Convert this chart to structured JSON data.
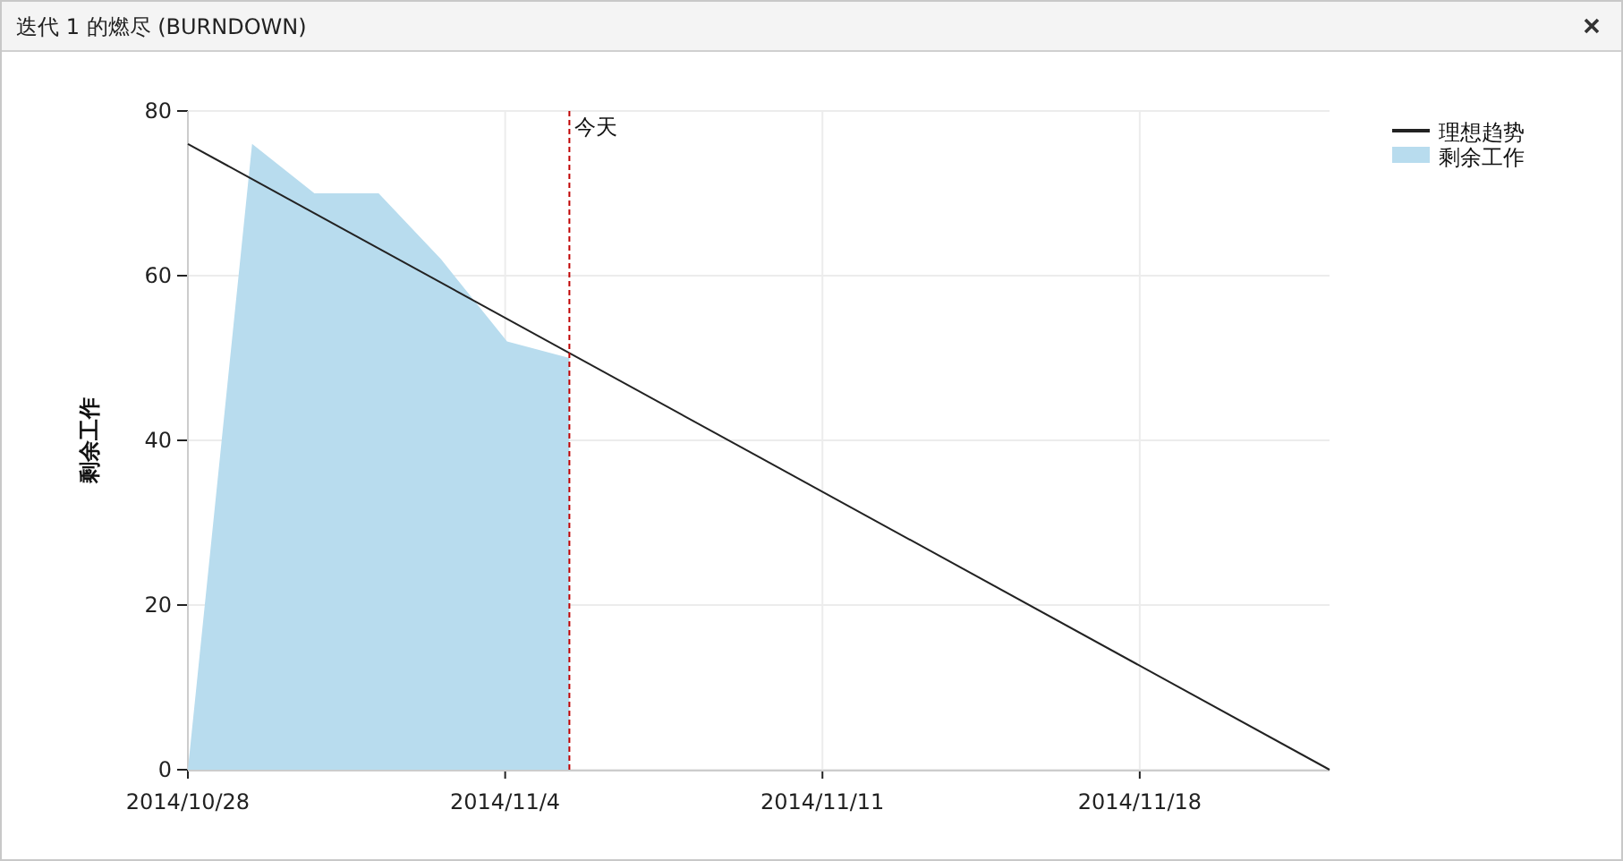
{
  "chart_data": {
    "type": "area",
    "title": "迭代 1 的燃尽 (BURNDOWN)",
    "ylabel": "剩余工作",
    "xlim": [
      "2014-10-28",
      "2014-11-22T04:30"
    ],
    "xticks": [
      {
        "value": "2014-10-28",
        "label": "2014/10/28"
      },
      {
        "value": "2014-11-04",
        "label": "2014/11/4"
      },
      {
        "value": "2014-11-11",
        "label": "2014/11/11"
      },
      {
        "value": "2014-11-18",
        "label": "2014/11/18"
      }
    ],
    "ylim": [
      0,
      80
    ],
    "yticks": [
      0,
      20,
      40,
      60,
      80
    ],
    "grid": true,
    "legend": "top right",
    "ref_lines": [
      {
        "axis": "x",
        "value": "2014-11-05T10:00",
        "label": "今天",
        "color": "#c00000",
        "line_style": "dashed"
      }
    ],
    "series": [
      {
        "name": "理想趋势",
        "type": "line",
        "color": "#222222",
        "x": [
          "2014-10-28",
          "2014-11-22T04:30"
        ],
        "values": [
          76,
          0
        ]
      },
      {
        "name": "剩余工作",
        "color": "#b8dcee",
        "x": [
          "2014-10-28",
          "2014-10-29T10:00",
          "2014-10-30T19:00",
          "2014-11-01T05:00",
          "2014-11-02T14:00",
          "2014-11-04T01:00",
          "2014-11-05T10:00"
        ],
        "values": [
          0,
          76,
          70,
          70,
          62,
          52,
          50
        ]
      }
    ]
  }
}
